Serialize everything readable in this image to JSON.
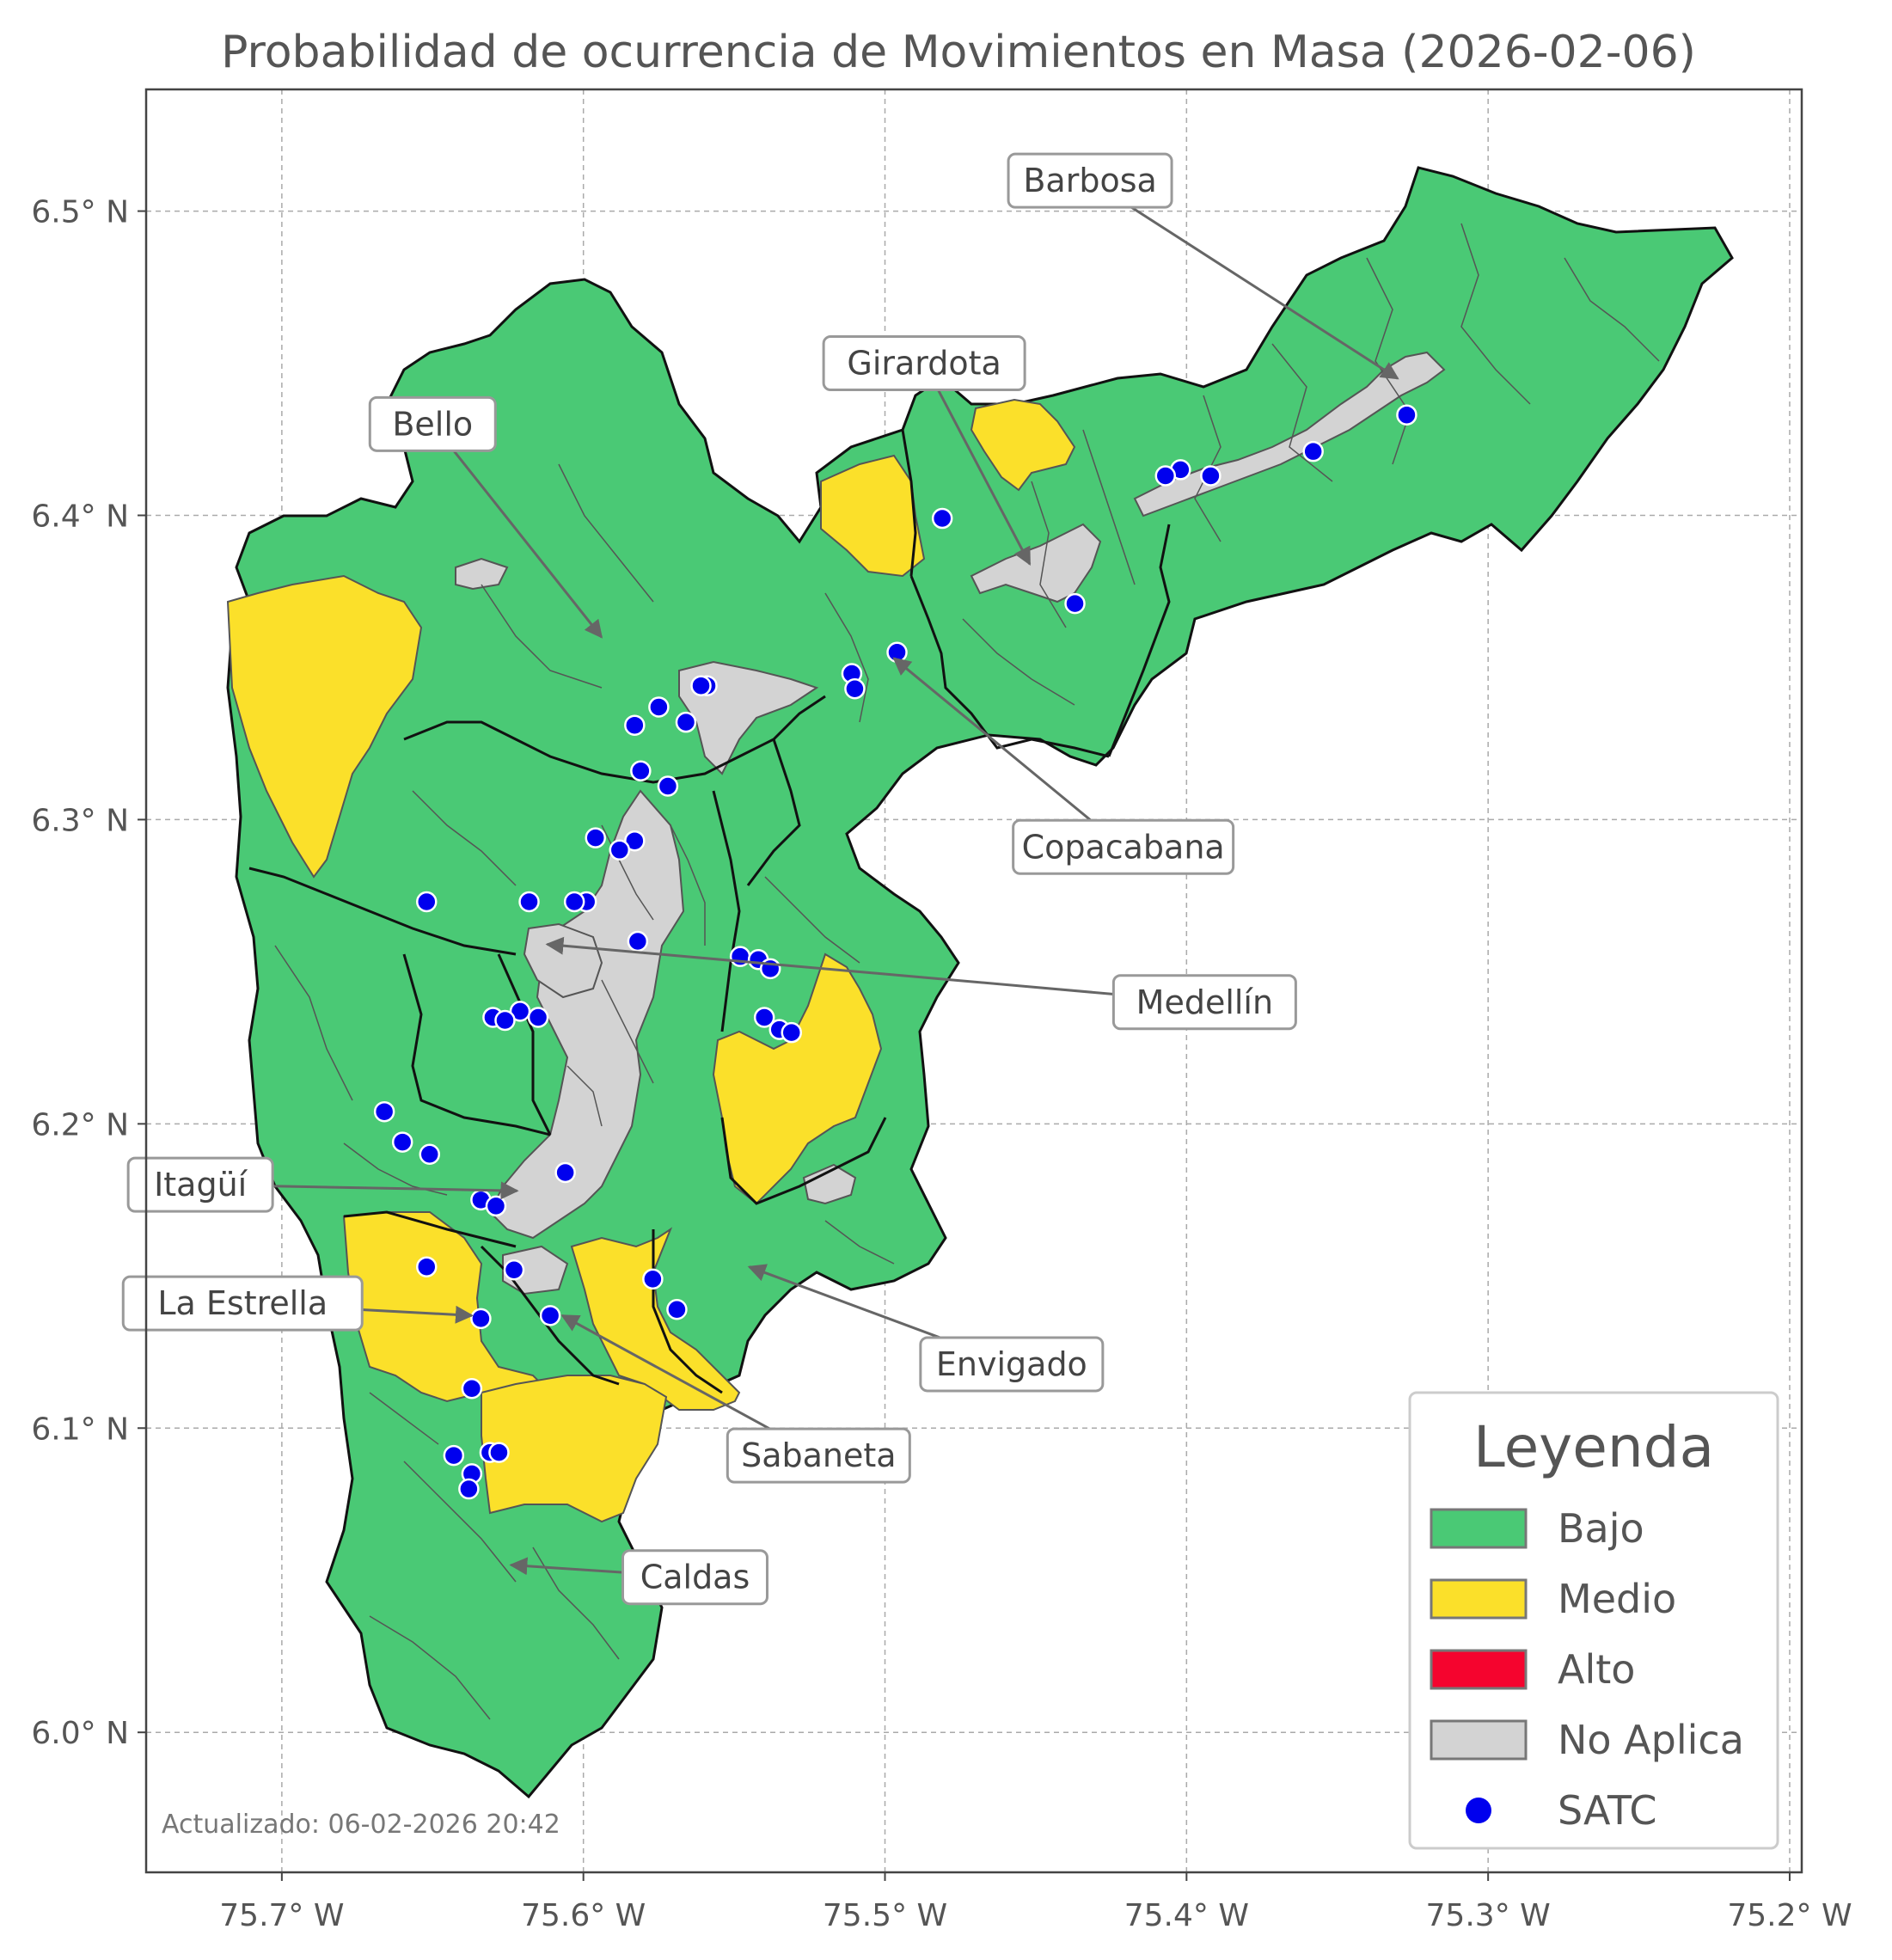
{
  "title": "Probabilidad de ocurrencia de Movimientos en Masa (2026-02-06)",
  "footnote": "Actualizado: 06-02-2026 20:42",
  "axes": {
    "x_ticks": [
      {
        "value": -75.7,
        "label": "75.7° W"
      },
      {
        "value": -75.6,
        "label": "75.6° W"
      },
      {
        "value": -75.5,
        "label": "75.5° W"
      },
      {
        "value": -75.4,
        "label": "75.4° W"
      },
      {
        "value": -75.3,
        "label": "75.3° W"
      },
      {
        "value": -75.2,
        "label": "75.2° W"
      }
    ],
    "y_ticks": [
      {
        "value": 6.5,
        "label": "6.5° N"
      },
      {
        "value": 6.4,
        "label": "6.4° N"
      },
      {
        "value": 6.3,
        "label": "6.3° N"
      },
      {
        "value": 6.2,
        "label": "6.2° N"
      },
      {
        "value": 6.1,
        "label": "6.1° N"
      },
      {
        "value": 6.0,
        "label": "6.0° N"
      }
    ],
    "xlim": [
      -75.745,
      -75.196
    ],
    "ylim": [
      5.954,
      6.54
    ],
    "grid": true
  },
  "colors": {
    "bajo": "#4ac975",
    "medio": "#fbe02a",
    "alto": "#f5042e",
    "no_aplica": "#d3d3d3",
    "satc": "#0000ee",
    "border": "#111111",
    "inner": "#555555"
  },
  "legend": {
    "title": "Leyenda",
    "placement": "bottom-right",
    "items": [
      {
        "key": "bajo",
        "label": "Bajo",
        "kind": "patch"
      },
      {
        "key": "medio",
        "label": "Medio",
        "kind": "patch"
      },
      {
        "key": "alto",
        "label": "Alto",
        "kind": "patch"
      },
      {
        "key": "no_aplica",
        "label": "No Aplica",
        "kind": "patch"
      },
      {
        "key": "satc",
        "label": "SATC",
        "kind": "dot"
      }
    ]
  },
  "municipalities": [
    {
      "name": "Barbosa",
      "label_at": [
        -75.432,
        6.51
      ],
      "arrow_to": [
        -75.33,
        6.445
      ]
    },
    {
      "name": "Girardota",
      "label_at": [
        -75.487,
        6.45
      ],
      "arrow_to": [
        -75.452,
        6.384
      ]
    },
    {
      "name": "Bello",
      "label_at": [
        -75.65,
        6.43
      ],
      "arrow_to": [
        -75.594,
        6.36
      ]
    },
    {
      "name": "Copacabana",
      "label_at": [
        -75.421,
        6.291
      ],
      "arrow_to": [
        -75.497,
        6.353
      ]
    },
    {
      "name": "Medellín",
      "label_at": [
        -75.394,
        6.24
      ],
      "arrow_to": [
        -75.612,
        6.259
      ]
    },
    {
      "name": "Itagüí",
      "label_at": [
        -75.727,
        6.18
      ],
      "arrow_to": [
        -75.622,
        6.178
      ]
    },
    {
      "name": "La Estrella",
      "label_at": [
        -75.713,
        6.141
      ],
      "arrow_to": [
        -75.637,
        6.137
      ]
    },
    {
      "name": "Envigado",
      "label_at": [
        -75.458,
        6.121
      ],
      "arrow_to": [
        -75.545,
        6.153
      ]
    },
    {
      "name": "Sabaneta",
      "label_at": [
        -75.522,
        6.091
      ],
      "arrow_to": [
        -75.607,
        6.137
      ]
    },
    {
      "name": "Caldas",
      "label_at": [
        -75.563,
        6.051
      ],
      "arrow_to": [
        -75.624,
        6.055
      ]
    }
  ],
  "satc_points": [
    [
      -75.327,
      6.433
    ],
    [
      -75.358,
      6.421
    ],
    [
      -75.392,
      6.413
    ],
    [
      -75.402,
      6.415
    ],
    [
      -75.407,
      6.413
    ],
    [
      -75.481,
      6.399
    ],
    [
      -75.437,
      6.371
    ],
    [
      -75.496,
      6.355
    ],
    [
      -75.511,
      6.348
    ],
    [
      -75.51,
      6.343
    ],
    [
      -75.559,
      6.344
    ],
    [
      -75.561,
      6.344
    ],
    [
      -75.566,
      6.332
    ],
    [
      -75.575,
      6.337
    ],
    [
      -75.583,
      6.331
    ],
    [
      -75.581,
      6.316
    ],
    [
      -75.572,
      6.311
    ],
    [
      -75.583,
      6.293
    ],
    [
      -75.588,
      6.29
    ],
    [
      -75.596,
      6.294
    ],
    [
      -75.652,
      6.273
    ],
    [
      -75.618,
      6.273
    ],
    [
      -75.599,
      6.273
    ],
    [
      -75.603,
      6.273
    ],
    [
      -75.582,
      6.26
    ],
    [
      -75.548,
      6.255
    ],
    [
      -75.542,
      6.254
    ],
    [
      -75.538,
      6.251
    ],
    [
      -75.54,
      6.235
    ],
    [
      -75.535,
      6.231
    ],
    [
      -75.531,
      6.23
    ],
    [
      -75.621,
      6.237
    ],
    [
      -75.63,
      6.235
    ],
    [
      -75.626,
      6.234
    ],
    [
      -75.615,
      6.235
    ],
    [
      -75.666,
      6.204
    ],
    [
      -75.66,
      6.194
    ],
    [
      -75.651,
      6.19
    ],
    [
      -75.606,
      6.184
    ],
    [
      -75.634,
      6.175
    ],
    [
      -75.629,
      6.173
    ],
    [
      -75.652,
      6.153
    ],
    [
      -75.623,
      6.152
    ],
    [
      -75.577,
      6.149
    ],
    [
      -75.569,
      6.139
    ],
    [
      -75.611,
      6.137
    ],
    [
      -75.634,
      6.136
    ],
    [
      -75.637,
      6.113
    ],
    [
      -75.643,
      6.091
    ],
    [
      -75.631,
      6.092
    ],
    [
      -75.628,
      6.092
    ],
    [
      -75.637,
      6.085
    ],
    [
      -75.638,
      6.08
    ]
  ]
}
